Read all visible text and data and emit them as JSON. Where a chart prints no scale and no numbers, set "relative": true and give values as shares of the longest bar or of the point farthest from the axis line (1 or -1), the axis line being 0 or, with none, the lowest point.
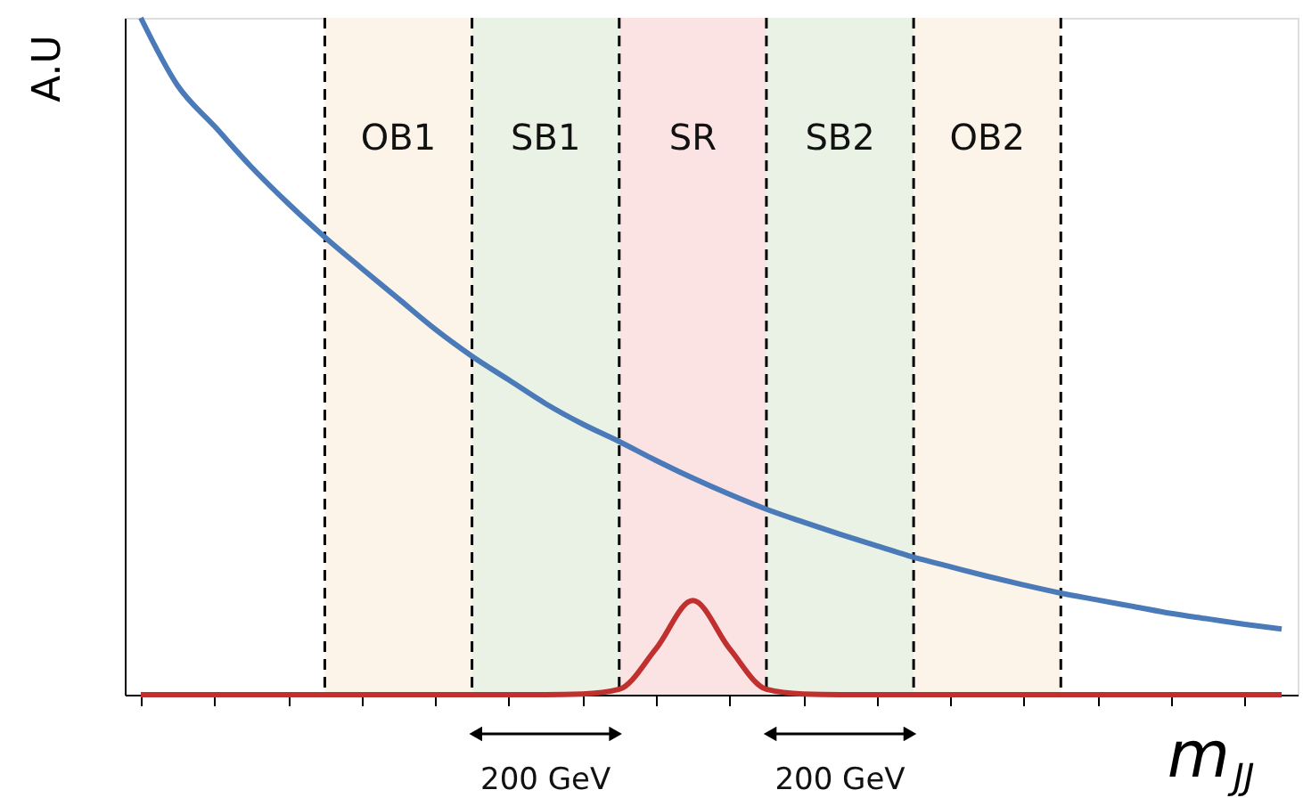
{
  "chart_data": {
    "type": "line",
    "relative": true,
    "ylabel": "A.U",
    "xlabel": "m$_{JJ}$",
    "categories": [
      null,
      null,
      null,
      null,
      null,
      null,
      null,
      null,
      null,
      null,
      null,
      null,
      null,
      null,
      null,
      null,
      null,
      null,
      null,
      null,
      null,
      null,
      null,
      null,
      null,
      null,
      null,
      null,
      null,
      null,
      null,
      null
    ],
    "tick_labels": false,
    "grid": "x",
    "series": [
      {
        "color": "#4a7ab8",
        "values": [
          1.0,
          0.9,
          0.84,
          0.78,
          0.726,
          0.676,
          0.63,
          0.585,
          0.54,
          0.5,
          0.465,
          0.43,
          0.4,
          0.374,
          0.346,
          0.32,
          0.296,
          0.274,
          0.255,
          0.237,
          0.22,
          0.203,
          0.189,
          0.175,
          0.162,
          0.15,
          0.14,
          0.13,
          0.12,
          0.112,
          0.104,
          0.097
        ]
      },
      {
        "color": "#c0302f",
        "values": [
          0,
          0,
          0,
          0,
          0,
          0,
          0,
          0,
          0,
          0,
          0,
          0,
          0.001,
          0.008,
          0.068,
          0.139,
          0.068,
          0.008,
          0.001,
          0,
          0,
          0,
          0,
          0,
          0,
          0,
          0,
          0,
          0,
          0,
          0,
          0
        ]
      }
    ],
    "annotations": [
      "OB1",
      "SB1",
      "SR",
      "SB2",
      "OB2",
      "200 GeV",
      "200 GeV"
    ]
  }
}
